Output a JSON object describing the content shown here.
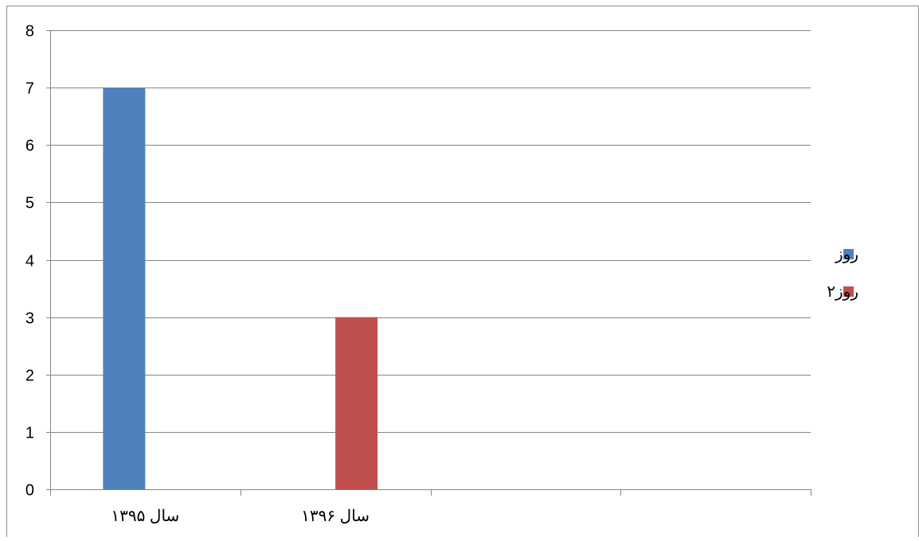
{
  "chart_data": {
    "type": "bar",
    "title": "",
    "xlabel": "",
    "ylabel": "",
    "categories": [
      "سال ۱۳۹۵",
      "سال ۱۳۹۶",
      "",
      ""
    ],
    "series": [
      {
        "name": "روز",
        "color": "#4f81bd",
        "values": [
          7,
          null,
          null,
          null
        ]
      },
      {
        "name": "روز۲",
        "color": "#c0504d",
        "values": [
          null,
          3,
          null,
          null
        ]
      }
    ],
    "ylim": [
      0,
      8
    ],
    "yticks": [
      "0",
      "1",
      "2",
      "3",
      "4",
      "5",
      "6",
      "7",
      "8"
    ],
    "grid": true,
    "legend_position": "right"
  }
}
